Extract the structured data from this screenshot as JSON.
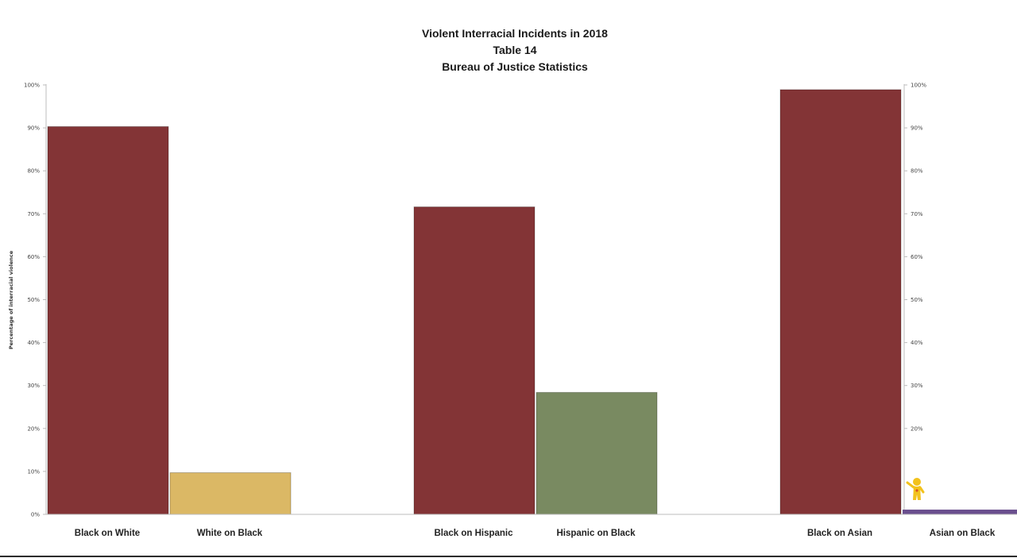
{
  "chart_data": {
    "type": "bar",
    "title": "Violent Interracial Incidents in 2018",
    "subtitle_lines": [
      "Table 14",
      "Bureau of Justice Statistics"
    ],
    "ylabel": "Percentage of interracial violence",
    "ylim": [
      0,
      100
    ],
    "yticks": [
      "0%",
      "10%",
      "20%",
      "30%",
      "40%",
      "50%",
      "60%",
      "70%",
      "80%",
      "90%",
      "100%"
    ],
    "yticks_right": [
      "20%",
      "30%",
      "40%",
      "50%",
      "60%",
      "70%",
      "80%",
      "90%",
      "100%"
    ],
    "grid": false,
    "categories": [
      "Black on White",
      "White on Black",
      "Black on Hispanic",
      "Hispanic on Black",
      "Black on Asian",
      "Asian on Black"
    ],
    "values": [
      90.3,
      9.7,
      71.6,
      28.4,
      98.9,
      1.1
    ],
    "colors": [
      "#833436",
      "#dbb865",
      "#833436",
      "#798a61",
      "#833436",
      "#6a4f8e"
    ],
    "figure_icon": "small-yellow-figure-icon"
  }
}
